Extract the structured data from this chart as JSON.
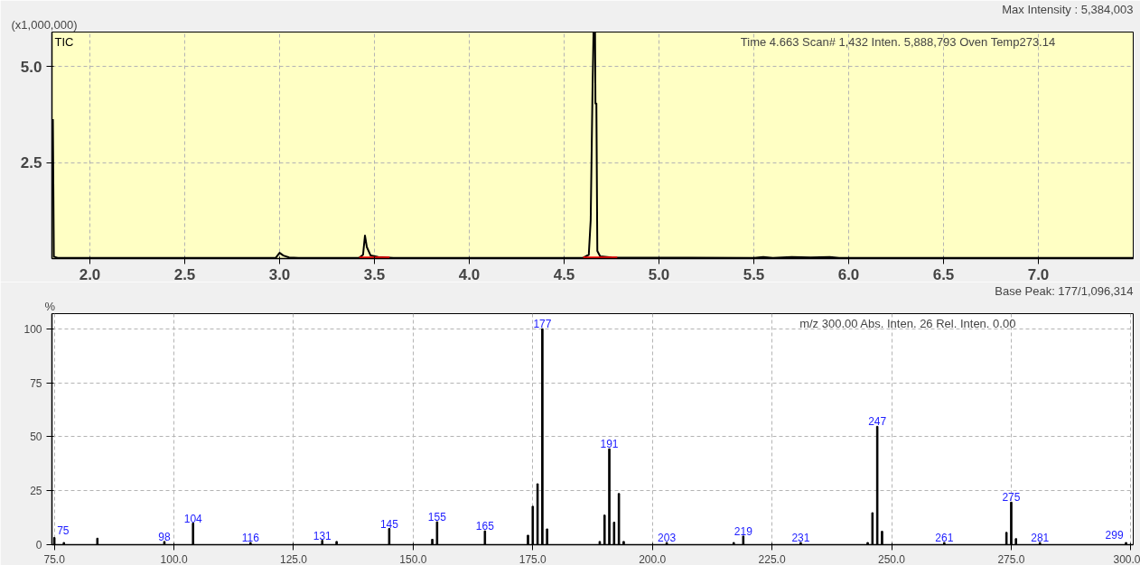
{
  "chart_data": [
    {
      "type": "line",
      "ylabel": "(x1,000,000)",
      "grid": true,
      "annotations": [
        "Time     4.663    Scan#  1,432    Inten.          5,888,793    Oven Temp273.14",
        "Max Intensity : 5,384,003"
      ],
      "xlim": [
        1.8,
        7.5
      ],
      "ylim": [
        0,
        5.9
      ],
      "xticks": [
        {
          "value": 2,
          "label": "2.0"
        },
        {
          "value": 2.5,
          "label": "2.5"
        },
        {
          "value": 3,
          "label": "3.0"
        },
        {
          "value": 3.5,
          "label": "3.5"
        },
        {
          "value": 4,
          "label": "4.0"
        },
        {
          "value": 4.5,
          "label": "4.5"
        },
        {
          "value": 5,
          "label": "5.0"
        },
        {
          "value": 5.5,
          "label": "5.5"
        },
        {
          "value": 6,
          "label": "6.0"
        },
        {
          "value": 6.5,
          "label": "6.5"
        },
        {
          "value": 7,
          "label": "7.0"
        }
      ],
      "yticks": [
        2.5,
        {
          "value": 5,
          "label": "5.0"
        }
      ],
      "series": [
        {
          "name": "TIC",
          "color": "#000000",
          "x": [
            1.805,
            1.81,
            1.83,
            2.9,
            2.98,
            3.0,
            3.02,
            3.05,
            3.1,
            3.42,
            3.44,
            3.45,
            3.46,
            3.48,
            3.52,
            3.6,
            4.6,
            4.63,
            4.64,
            4.65,
            4.655,
            4.663,
            4.665,
            4.67,
            4.675,
            4.69,
            4.75,
            5.5,
            5.55,
            5.6,
            5.7,
            5.8,
            5.9,
            5.95,
            7.5
          ],
          "values": [
            3.63,
            0.05,
            0.02,
            0.02,
            0.02,
            0.15,
            0.08,
            0.03,
            0.02,
            0.02,
            0.1,
            0.6,
            0.3,
            0.08,
            0.04,
            0.02,
            0.02,
            0.1,
            1.0,
            4.5,
            5.89,
            5.89,
            4.04,
            4.04,
            0.2,
            0.06,
            0.03,
            0.02,
            0.04,
            0.02,
            0.04,
            0.03,
            0.04,
            0.02,
            0.02
          ]
        },
        {
          "color": "#ff0000",
          "x": [
            3.42,
            3.58
          ],
          "values": [
            0.03,
            0.03
          ]
        },
        {
          "color": "#ff0000",
          "x": [
            4.6,
            4.78
          ],
          "values": [
            0.03,
            0.03
          ]
        }
      ]
    },
    {
      "type": "bar",
      "ylabel": "%",
      "grid": true,
      "color": "#000000",
      "annotations": [
        "m/z      300.00    Abs. Inten.                    26    Rel. Inten.      0.00",
        "Base Peak: 177/1,096,314",
        {
          "text": "75",
          "x": 75,
          "y": 3.3
        },
        {
          "text": "98",
          "x": 98,
          "y": 1.5
        },
        {
          "text": "104",
          "x": 104,
          "y": 10
        },
        {
          "text": "116",
          "x": 116,
          "y": 1
        },
        {
          "text": "131",
          "x": 131,
          "y": 2
        },
        {
          "text": "145",
          "x": 145,
          "y": 7.5
        },
        {
          "text": "155",
          "x": 155,
          "y": 10.6
        },
        {
          "text": "165",
          "x": 165,
          "y": 6.4
        },
        {
          "text": "177",
          "x": 177,
          "y": 100
        },
        {
          "text": "191",
          "x": 191,
          "y": 44.4
        },
        {
          "text": "203",
          "x": 203,
          "y": 1
        },
        {
          "text": "219",
          "x": 219,
          "y": 4
        },
        {
          "text": "231",
          "x": 231,
          "y": 1
        },
        {
          "text": "247",
          "x": 247,
          "y": 54.8
        },
        {
          "text": "261",
          "x": 261,
          "y": 1
        },
        {
          "text": "275",
          "x": 275,
          "y": 19.7
        },
        {
          "text": "281",
          "x": 281,
          "y": 1
        },
        {
          "text": "299",
          "x": 299,
          "y": 1
        }
      ],
      "x": [
        75,
        77,
        84,
        98,
        104,
        116,
        131,
        134,
        145,
        154,
        155,
        165,
        174,
        175,
        176,
        177,
        178,
        189,
        190,
        191,
        192,
        193,
        194,
        203,
        217,
        219,
        231,
        245,
        246,
        247,
        248,
        261,
        274,
        275,
        276,
        281,
        299
      ],
      "values": [
        3.3,
        1,
        3,
        1.5,
        10,
        1,
        2,
        1.5,
        7.5,
        2.5,
        10.6,
        6.4,
        4.4,
        17.8,
        28.2,
        100,
        7.3,
        1.5,
        13.7,
        44.4,
        10.4,
        23.7,
        1.5,
        1,
        1,
        4,
        1,
        1,
        14.8,
        54.8,
        6.2,
        1,
        5.7,
        19.7,
        2.8,
        1,
        1
      ],
      "xlim": [
        74.5,
        300.5
      ],
      "ylim": [
        0,
        107
      ],
      "xticks": [
        {
          "value": 75,
          "label": "75.0"
        },
        {
          "value": 100,
          "label": "100.0"
        },
        {
          "value": 125,
          "label": "125.0"
        },
        {
          "value": 150,
          "label": "150.0"
        },
        {
          "value": 175,
          "label": "175.0"
        },
        {
          "value": 200,
          "label": "200.0"
        },
        {
          "value": 225,
          "label": "225.0"
        },
        {
          "value": 250,
          "label": "250.0"
        },
        {
          "value": 275,
          "label": "275.0"
        },
        {
          "value": 300,
          "label": "300.0"
        }
      ],
      "yticks": [
        0,
        25,
        50,
        75,
        100
      ]
    }
  ]
}
